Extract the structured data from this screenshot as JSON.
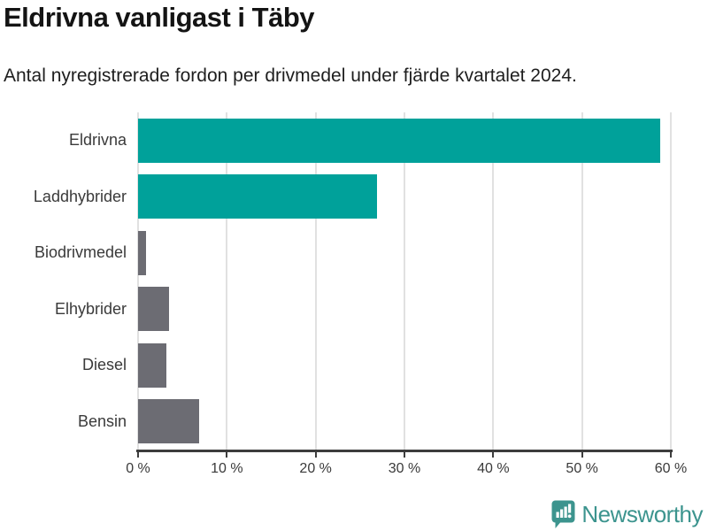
{
  "header": {
    "title": "Eldrivna vanligast i Täby",
    "subtitle": "Antal nyregistrerade fordon per drivmedel under fjärde kvartalet 2024."
  },
  "chart_data": {
    "type": "bar",
    "orientation": "horizontal",
    "title": "Eldrivna vanligast i Täby",
    "subtitle": "Antal nyregistrerade fordon per drivmedel under fjärde kvartalet 2024.",
    "categories": [
      "Eldrivna",
      "Laddhybrider",
      "Biodrivmedel",
      "Elhybrider",
      "Diesel",
      "Bensin"
    ],
    "values": [
      58.8,
      26.9,
      0.9,
      3.5,
      3.2,
      6.9
    ],
    "unit": "%",
    "xlabel": "",
    "ylabel": "",
    "xlim": [
      0,
      60
    ],
    "x_ticks": [
      0,
      10,
      20,
      30,
      40,
      50,
      60
    ],
    "x_tick_labels": [
      "0 %",
      "10 %",
      "20 %",
      "30 %",
      "40 %",
      "50 %",
      "60 %"
    ],
    "bar_colors": [
      "#00a19a",
      "#00a19a",
      "#6c6c73",
      "#6c6c73",
      "#6c6c73",
      "#6c6c73"
    ],
    "grid": true,
    "gridline_color": "#e1e1e1",
    "legend": false
  },
  "colors": {
    "accent_teal": "#00a19a",
    "neutral_gray": "#6c6c73",
    "axis": "#3d3d3d",
    "brand_teal": "#3c948e"
  },
  "footer": {
    "brand": "Newsworthy"
  }
}
